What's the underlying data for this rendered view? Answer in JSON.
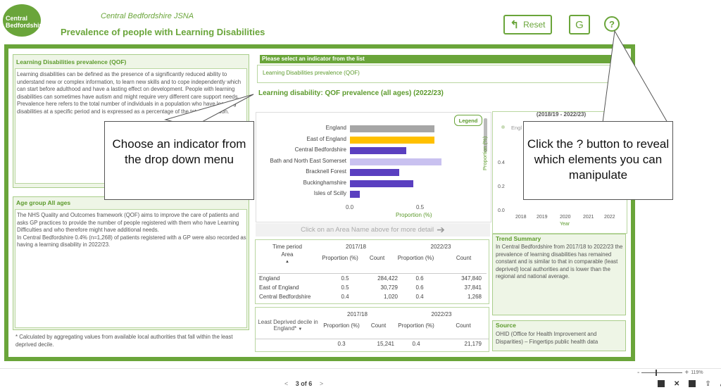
{
  "header": {
    "logo_text": "Central Bedfordshire",
    "site_name": "Central Bedfordshire JSNA",
    "page_title": "Prevalence of people with Learning Disabilities",
    "reset_label": "Reset",
    "g_label": "G",
    "help_label": "?"
  },
  "left": {
    "section1_title": "Learning Disabilities prevalence (QOF)",
    "section1_text": "Learning disabilities can be defined as the presence of a significantly reduced ability to understand new or complex information, to learn new skills and to cope independently which can start before adulthood and have a lasting effect on development. People with learning disabilities can sometimes have autism and might require very different care support needs. Prevalence here refers to the total number of individuals in a population who have learning disabilities at a specific period and is  expressed as a percentage of the total population.",
    "section2_title": "Age group All ages",
    "section2_text": "The NHS Quality and Outcomes framework (QOF) aims to improve the care of patients and asks GP practices to provide the number of people registered with them who have Learning Difficulties and who therefore might have additional needs.\nIn Central Bedfordshire 0.4% (n=1,268) of patients registered with a GP were also recorded as having a learning disability in 2022/23.",
    "footnote": "* Calculated by aggregating values from available local authorities that fall within the least deprived decile."
  },
  "indicator": {
    "prompt": "Please select an indicator from the list",
    "selected": "Learning Disabilities prevalence (QOF)"
  },
  "chart_title": "Learning disability: QOF prevalence (all ages) (2022/23)",
  "legend_label": "Legend",
  "hint_text": "Click on an Area Name above for more detail",
  "hint_arrow": "➔",
  "chart_data": [
    {
      "type": "bar",
      "orientation": "horizontal",
      "categories": [
        "England",
        "East of England",
        "Central Bedfordshire",
        "Bath and North East Somerset",
        "Bracknell Forest",
        "Buckinghamshire",
        "Isles of Scilly"
      ],
      "values": [
        0.6,
        0.6,
        0.4,
        0.65,
        0.35,
        0.45,
        0.07
      ],
      "colors": [
        "#a6a6a6",
        "#ffc000",
        "#5a3fc0",
        "#c9c1f0",
        "#5a3fc0",
        "#5a3fc0",
        "#5a3fc0"
      ],
      "xlabel": "Proportion (%)",
      "xticks": [
        "0.0",
        "0.5"
      ],
      "xlim": [
        0,
        0.7
      ]
    },
    {
      "type": "line",
      "title": "(2018/19 - 2022/23)",
      "x": [
        "2018",
        "2019",
        "2020",
        "2021",
        "2022"
      ],
      "series": [
        {
          "name": "Engl",
          "values": [
            0.5,
            0.5,
            0.5,
            0.5,
            0.6
          ]
        }
      ],
      "xlabel": "Year",
      "ylabel": "Proportion (%)",
      "yticks": [
        "0.0",
        "0.2",
        "0.4"
      ],
      "ylim": [
        0,
        0.6
      ]
    }
  ],
  "table1": {
    "time_label": "Time period",
    "area_label": "Area",
    "year1": "2017/18",
    "year2": "2022/23",
    "col_prop": "Proportion (%)",
    "col_count": "Count",
    "rows": [
      {
        "area": "England",
        "p1": "0.5",
        "c1": "284,422",
        "p2": "0.6",
        "c2": "347,840"
      },
      {
        "area": "East of England",
        "p1": "0.5",
        "c1": "30,729",
        "p2": "0.6",
        "c2": "37,841"
      },
      {
        "area": "Central Bedfordshire",
        "p1": "0.4",
        "c1": "1,020",
        "p2": "0.4",
        "c2": "1,268"
      }
    ]
  },
  "table2": {
    "year1": "2017/18",
    "year2": "2022/23",
    "dec_label": "Least Deprived decile in England*",
    "col_prop": "Proportion (%)",
    "col_count": "Count",
    "row": {
      "p1": "0.3",
      "c1": "15,241",
      "p2": "0.4",
      "c2": "21,179"
    }
  },
  "trend": {
    "title": "Trend Summary",
    "text": "In Central Bedfordshire from 2017/18 to 2022/23 the prevalence of learning disabilities has remained constant and is similar to that in comparable (least deprived) local authorities and is lower than the regional and national average."
  },
  "source": {
    "title": "Source",
    "text": "OHID (Office for Health Improvement and Disparities) – Fingertips public health data"
  },
  "callouts": {
    "left": "Choose an indicator from the drop down menu",
    "right": "Click the ? button to reveal which elements you can manipulate"
  },
  "footer": {
    "page_label": "3 of 6",
    "zoom": "119%"
  }
}
